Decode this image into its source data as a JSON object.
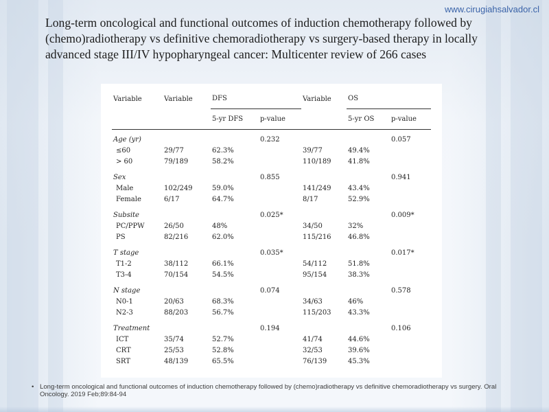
{
  "site_url": "www.cirugiahsalvador.cl",
  "title": "Long-term oncological and functional outcomes of induction chemotherapy followed by (chemo)radiotherapy vs definitive chemoradiotherapy vs surgery-based therapy in locally advanced stage III/IV hypopharyngeal cancer: Multicenter review of 266 cases",
  "table": {
    "headers": {
      "variable": "Variable",
      "variable_dfs": "Variable",
      "dfs": "DFS",
      "variable_os": "Variable",
      "os": "OS",
      "dfs_5yr": "5-yr DFS",
      "dfs_p": "p-value",
      "os_5yr": "5-yr OS",
      "os_p": "p-value"
    },
    "groups": [
      {
        "name": "Age (yr)",
        "dfs_p": "0.232",
        "os_p": "0.057",
        "rows": [
          {
            "label": "≤60",
            "dfs_n": "29/77",
            "dfs_5yr": "62.3%",
            "os_n": "39/77",
            "os_5yr": "49.4%"
          },
          {
            "label": "> 60",
            "dfs_n": "79/189",
            "dfs_5yr": "58.2%",
            "os_n": "110/189",
            "os_5yr": "41.8%"
          }
        ]
      },
      {
        "name": "Sex",
        "dfs_p": "0.855",
        "os_p": "0.941",
        "rows": [
          {
            "label": "Male",
            "dfs_n": "102/249",
            "dfs_5yr": "59.0%",
            "os_n": "141/249",
            "os_5yr": "43.4%"
          },
          {
            "label": "Female",
            "dfs_n": "6/17",
            "dfs_5yr": "64.7%",
            "os_n": "8/17",
            "os_5yr": "52.9%"
          }
        ]
      },
      {
        "name": "Subsite",
        "dfs_p": "0.025*",
        "os_p": "0.009*",
        "rows": [
          {
            "label": "PC/PPW",
            "dfs_n": "26/50",
            "dfs_5yr": "48%",
            "os_n": "34/50",
            "os_5yr": "32%"
          },
          {
            "label": "PS",
            "dfs_n": "82/216",
            "dfs_5yr": "62.0%",
            "os_n": "115/216",
            "os_5yr": "46.8%"
          }
        ]
      },
      {
        "name": "T stage",
        "dfs_p": "0.035*",
        "os_p": "0.017*",
        "rows": [
          {
            "label": "T1-2",
            "dfs_n": "38/112",
            "dfs_5yr": "66.1%",
            "os_n": "54/112",
            "os_5yr": "51.8%"
          },
          {
            "label": "T3-4",
            "dfs_n": "70/154",
            "dfs_5yr": "54.5%",
            "os_n": "95/154",
            "os_5yr": "38.3%"
          }
        ]
      },
      {
        "name": "N stage",
        "dfs_p": "0.074",
        "os_p": "0.578",
        "rows": [
          {
            "label": "N0-1",
            "dfs_n": "20/63",
            "dfs_5yr": "68.3%",
            "os_n": "34/63",
            "os_5yr": "46%"
          },
          {
            "label": "N2-3",
            "dfs_n": "88/203",
            "dfs_5yr": "56.7%",
            "os_n": "115/203",
            "os_5yr": "43.3%"
          }
        ]
      },
      {
        "name": "Treatment",
        "dfs_p": "0.194",
        "os_p": "0.106",
        "rows": [
          {
            "label": "ICT",
            "dfs_n": "35/74",
            "dfs_5yr": "52.7%",
            "os_n": "41/74",
            "os_5yr": "44.6%"
          },
          {
            "label": "CRT",
            "dfs_n": "25/53",
            "dfs_5yr": "52.8%",
            "os_n": "32/53",
            "os_5yr": "39.6%"
          },
          {
            "label": "SRT",
            "dfs_n": "48/139",
            "dfs_5yr": "65.5%",
            "os_n": "76/139",
            "os_5yr": "45.3%"
          }
        ]
      }
    ]
  },
  "footnote": {
    "bullet": "•",
    "text": "Long-term oncological and functional outcomes of induction chemotherapy followed by (chemo)radiotherapy vs definitive chemoradiotherapy vs surgery. Oral Oncology. 2019 Feb;89:84-94"
  }
}
